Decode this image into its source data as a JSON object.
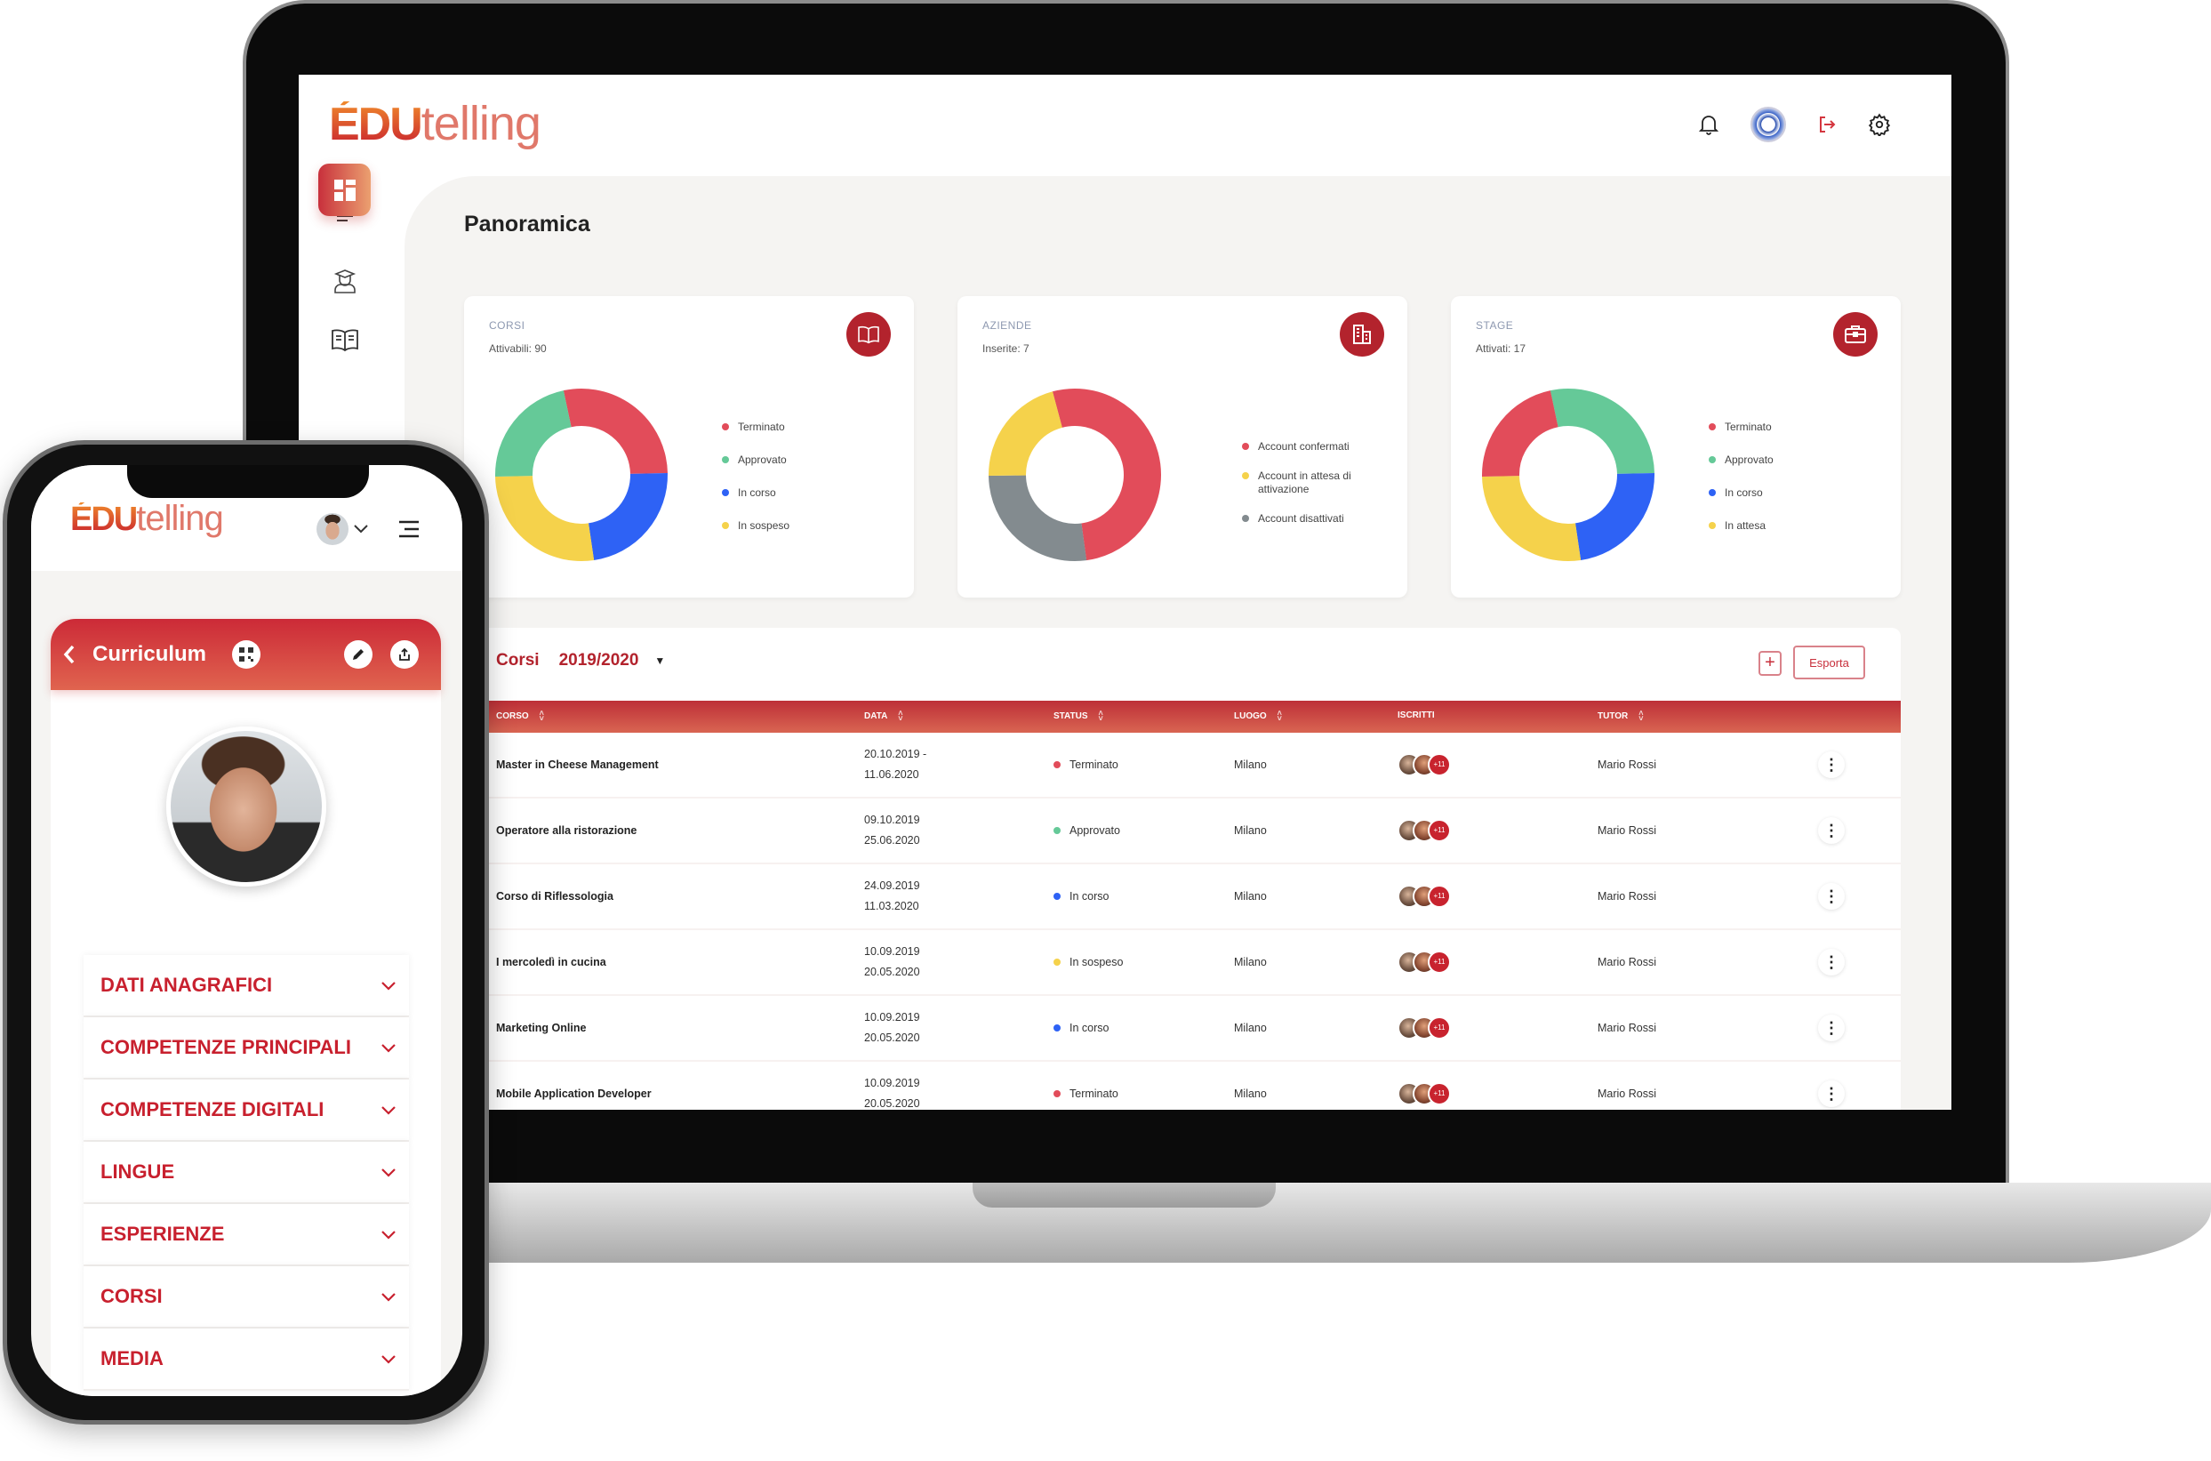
{
  "desktop": {
    "logo": {
      "bold": "ÉDU",
      "light": "telling"
    },
    "header_icons": [
      "bell-icon",
      "avatar",
      "logout-icon",
      "gear-icon"
    ],
    "sidebar": [
      "menu-icon",
      "dashboard-icon",
      "graduate-icon",
      "book-icon"
    ],
    "page_title": "Panoramica",
    "cards": [
      {
        "title": "CORSI",
        "subtitle": "Attivabili: 90",
        "icon": "book-icon",
        "legend": [
          {
            "label": "Terminato",
            "color": "#e24c5a",
            "value": 28
          },
          {
            "label": "Approvato",
            "color": "#65c998",
            "value": 22
          },
          {
            "label": "In corso",
            "color": "#2e62f5",
            "value": 23
          },
          {
            "label": "In sospeso",
            "color": "#f5d24b",
            "value": 27
          }
        ]
      },
      {
        "title": "AZIENDE",
        "subtitle": "Inserite: 7",
        "icon": "building-icon",
        "legend": [
          {
            "label": "Account confermati",
            "color": "#e24c5a",
            "value": 52
          },
          {
            "label": "Account in attesa di attivazione",
            "color": "#f5d24b",
            "value": 21
          },
          {
            "label": "Account disattivati",
            "color": "#838b8f",
            "value": 27
          }
        ]
      },
      {
        "title": "STAGE",
        "subtitle": "Attivati: 17",
        "icon": "briefcase-icon",
        "legend": [
          {
            "label": "Terminato",
            "color": "#e24c5a",
            "value": 22
          },
          {
            "label": "Approvato",
            "color": "#65c998",
            "value": 28
          },
          {
            "label": "In corso",
            "color": "#2e62f5",
            "value": 23
          },
          {
            "label": "In attesa",
            "color": "#f5d24b",
            "value": 27
          }
        ]
      }
    ],
    "table": {
      "title": "Corsi",
      "year": "2019/2020",
      "export_label": "Esporta",
      "add_label": "+",
      "columns": [
        "CORSO",
        "DATA",
        "STATUS",
        "LUOGO",
        "ISCRITTI",
        "TUTOR"
      ],
      "rows": [
        {
          "corso": "Master in Cheese Management",
          "start": "20.10.2019 -",
          "end": "11.06.2020",
          "status": "Terminato",
          "status_color": "#e24c5a",
          "luogo": "Milano",
          "extra": "+11",
          "tutor": "Mario Rossi"
        },
        {
          "corso": "Operatore alla ristorazione",
          "start": "09.10.2019",
          "end": "25.06.2020",
          "status": "Approvato",
          "status_color": "#65c998",
          "luogo": "Milano",
          "extra": "+11",
          "tutor": "Mario Rossi"
        },
        {
          "corso": "Corso di Riflessologia",
          "start": "24.09.2019",
          "end": "11.03.2020",
          "status": "In corso",
          "status_color": "#2e62f5",
          "luogo": "Milano",
          "extra": "+11",
          "tutor": "Mario Rossi"
        },
        {
          "corso": "I mercoledì in cucina",
          "start": "10.09.2019",
          "end": "20.05.2020",
          "status": "In sospeso",
          "status_color": "#f5d24b",
          "luogo": "Milano",
          "extra": "+11",
          "tutor": "Mario Rossi"
        },
        {
          "corso": "Marketing Online",
          "start": "10.09.2019",
          "end": "20.05.2020",
          "status": "In corso",
          "status_color": "#2e62f5",
          "luogo": "Milano",
          "extra": "+11",
          "tutor": "Mario Rossi"
        },
        {
          "corso": "Mobile Application Developer",
          "start": "10.09.2019",
          "end": "20.05.2020",
          "status": "Terminato",
          "status_color": "#e24c5a",
          "luogo": "Milano",
          "extra": "+11",
          "tutor": "Mario Rossi"
        }
      ]
    }
  },
  "mobile": {
    "logo": {
      "bold": "ÉDU",
      "light": "telling"
    },
    "header": {
      "title": "Curriculum"
    },
    "sections": [
      "DATI ANAGRAFICI",
      "COMPETENZE PRINCIPALI",
      "COMPETENZE DIGITALI",
      "LINGUE",
      "ESPERIENZE",
      "CORSI",
      "MEDIA"
    ]
  },
  "colors": {
    "brand": "#b3232d",
    "accent": "#c8202e",
    "background": "#f5f4f2"
  }
}
